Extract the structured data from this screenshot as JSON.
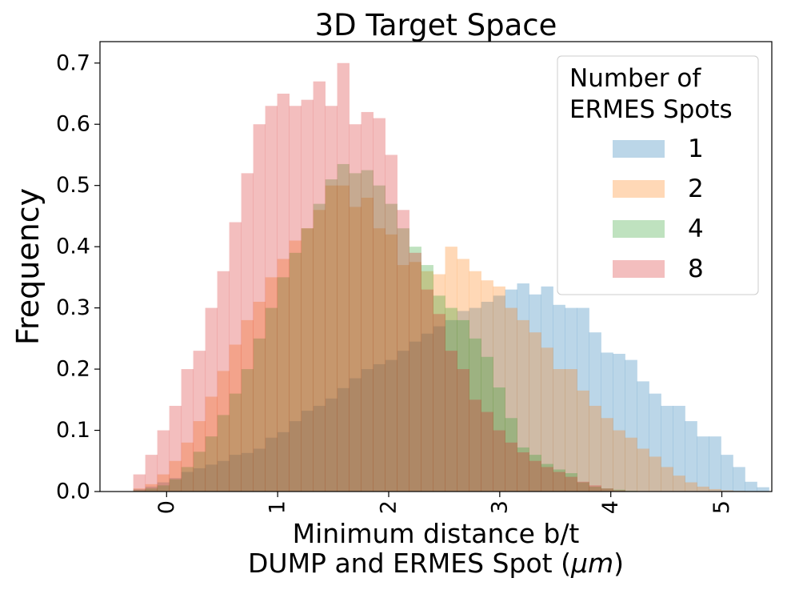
{
  "chart_data": {
    "type": "histogram",
    "title": "3D Target Space",
    "xlabel_line1": "Minimum distance b/t",
    "xlabel_line2_prefix": "DUMP and ERMES Spot (",
    "xlabel_line2_unit": "μm",
    "xlabel_line2_suffix": ")",
    "ylabel": "Frequency",
    "xlim": [
      -0.6,
      5.45
    ],
    "ylim": [
      0,
      0.735
    ],
    "xticks": [
      0,
      1,
      2,
      3,
      4,
      5
    ],
    "xtick_labels": [
      "0",
      "1",
      "2",
      "3",
      "4",
      "5"
    ],
    "yticks": [
      0.0,
      0.1,
      0.2,
      0.3,
      0.4,
      0.5,
      0.6,
      0.7
    ],
    "ytick_labels": [
      "0.0",
      "0.1",
      "0.2",
      "0.3",
      "0.4",
      "0.5",
      "0.6",
      "0.7"
    ],
    "legend": {
      "title_line1": "Number of",
      "title_line2": "ERMES Spots",
      "position": "upper right"
    },
    "alpha": 0.3,
    "series": [
      {
        "name": "1",
        "color": "#1f77b4",
        "x_start": -0.3,
        "bin_width": 0.108,
        "values": [
          0.004,
          0.008,
          0.015,
          0.022,
          0.032,
          0.038,
          0.044,
          0.05,
          0.06,
          0.063,
          0.07,
          0.088,
          0.097,
          0.115,
          0.132,
          0.14,
          0.152,
          0.169,
          0.185,
          0.2,
          0.208,
          0.215,
          0.23,
          0.245,
          0.258,
          0.27,
          0.28,
          0.295,
          0.3,
          0.31,
          0.32,
          0.33,
          0.34,
          0.322,
          0.335,
          0.305,
          0.3,
          0.3,
          0.26,
          0.227,
          0.225,
          0.215,
          0.18,
          0.16,
          0.14,
          0.14,
          0.115,
          0.09,
          0.09,
          0.06,
          0.04,
          0.016,
          0.007
        ]
      },
      {
        "name": "2",
        "color": "#ff7f0e",
        "x_start": -0.3,
        "bin_width": 0.108,
        "values": [
          0.005,
          0.012,
          0.028,
          0.05,
          0.08,
          0.115,
          0.155,
          0.197,
          0.24,
          0.28,
          0.31,
          0.35,
          0.38,
          0.41,
          0.43,
          0.46,
          0.5,
          0.5,
          0.465,
          0.48,
          0.43,
          0.42,
          0.37,
          0.375,
          0.36,
          0.355,
          0.4,
          0.38,
          0.36,
          0.345,
          0.335,
          0.3,
          0.28,
          0.26,
          0.235,
          0.2,
          0.2,
          0.165,
          0.14,
          0.12,
          0.1,
          0.088,
          0.07,
          0.057,
          0.04,
          0.026,
          0.015,
          0.008,
          0.004,
          0.002,
          0.001
        ]
      },
      {
        "name": "4",
        "color": "#2ca02c",
        "x_start": -0.3,
        "bin_width": 0.108,
        "values": [
          0.002,
          0.005,
          0.01,
          0.02,
          0.04,
          0.065,
          0.09,
          0.125,
          0.16,
          0.2,
          0.25,
          0.3,
          0.35,
          0.39,
          0.43,
          0.47,
          0.51,
          0.535,
          0.52,
          0.525,
          0.5,
          0.47,
          0.43,
          0.4,
          0.37,
          0.32,
          0.3,
          0.28,
          0.25,
          0.22,
          0.17,
          0.12,
          0.072,
          0.06,
          0.045,
          0.036,
          0.03,
          0.015,
          0.008,
          0.005,
          0.003,
          0.001
        ]
      },
      {
        "name": "8",
        "color": "#d62728",
        "x_start": -0.3,
        "bin_width": 0.108,
        "values": [
          0.028,
          0.06,
          0.1,
          0.14,
          0.2,
          0.23,
          0.3,
          0.36,
          0.44,
          0.52,
          0.6,
          0.63,
          0.65,
          0.63,
          0.64,
          0.67,
          0.63,
          0.7,
          0.6,
          0.62,
          0.61,
          0.55,
          0.46,
          0.39,
          0.33,
          0.29,
          0.23,
          0.2,
          0.15,
          0.13,
          0.1,
          0.08,
          0.064,
          0.05,
          0.04,
          0.032,
          0.024,
          0.016,
          0.01,
          0.005,
          0.002
        ]
      }
    ]
  }
}
